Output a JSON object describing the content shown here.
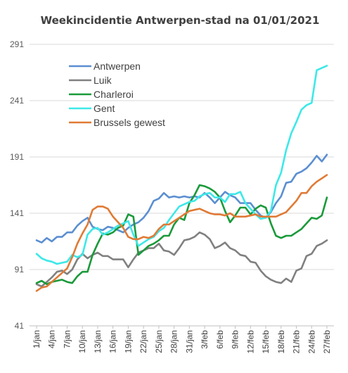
{
  "chart_data": {
    "type": "line",
    "title": "Weekincidentie  Antwerpen-stad na 01/01/2021",
    "xlabel": "",
    "ylabel": "",
    "ylim": [
      41,
      301
    ],
    "yticks": [
      41,
      91,
      141,
      191,
      241,
      291
    ],
    "grid": true,
    "legend_position": "top-left",
    "x": [
      "1/jan",
      "2/jan",
      "3/jan",
      "4/jan",
      "5/jan",
      "6/jan",
      "7/jan",
      "8/jan",
      "9/jan",
      "10/jan",
      "11/jan",
      "12/jan",
      "13/jan",
      "14/jan",
      "15/jan",
      "16/jan",
      "17/jan",
      "18/jan",
      "19/jan",
      "20/jan",
      "21/jan",
      "22/jan",
      "23/jan",
      "24/jan",
      "25/jan",
      "26/jan",
      "27/jan",
      "28/jan",
      "29/jan",
      "30/jan",
      "31/jan",
      "1/feb",
      "2/feb",
      "3/feb",
      "4/feb",
      "5/feb",
      "6/feb",
      "7/feb",
      "8/feb",
      "9/feb",
      "10/feb",
      "11/feb",
      "12/feb",
      "13/feb",
      "14/feb",
      "15/feb",
      "16/feb",
      "17/feb",
      "18/feb",
      "19/feb",
      "20/feb",
      "21/feb",
      "22/feb",
      "23/feb",
      "24/feb",
      "25/feb",
      "26/feb",
      "27/feb"
    ],
    "x_tick_labels": [
      "1/jan",
      "4/jan",
      "7/jan",
      "10/jan",
      "13/jan",
      "16/jan",
      "19/jan",
      "22/jan",
      "25/jan",
      "28/jan",
      "31/jan",
      "3/feb",
      "6/feb",
      "9/feb",
      "12/feb",
      "15/feb",
      "18/feb",
      "21/feb",
      "24/feb",
      "27/feb"
    ],
    "series": [
      {
        "name": "Antwerpen",
        "color": "#5b8fd1",
        "values": [
          117,
          115,
          119,
          116,
          120,
          120,
          124,
          124,
          130,
          134,
          137,
          129,
          127,
          126,
          129,
          128,
          126,
          124,
          128,
          131,
          133,
          137,
          143,
          152,
          154,
          159,
          155,
          156,
          155,
          156,
          155,
          156,
          155,
          159,
          155,
          150,
          155,
          160,
          157,
          155,
          150,
          150,
          150,
          144,
          139,
          137,
          142,
          150,
          156,
          168,
          169,
          176,
          178,
          181,
          186,
          192,
          187,
          193
        ]
      },
      {
        "name": "Luik",
        "color": "#808080",
        "values": [
          78,
          76,
          80,
          84,
          89,
          90,
          87,
          91,
          100,
          105,
          101,
          104,
          106,
          103,
          103,
          100,
          100,
          100,
          93,
          100,
          106,
          108,
          110,
          110,
          114,
          108,
          107,
          104,
          110,
          117,
          118,
          120,
          124,
          122,
          118,
          110,
          112,
          115,
          110,
          108,
          104,
          103,
          98,
          97,
          90,
          85,
          82,
          80,
          79,
          83,
          80,
          90,
          92,
          103,
          105,
          112,
          114,
          117
        ]
      },
      {
        "name": "Charleroi",
        "color": "#1a9a3a",
        "values": [
          79,
          81,
          78,
          80,
          81,
          82,
          80,
          79,
          85,
          89,
          89,
          104,
          114,
          123,
          122,
          124,
          128,
          130,
          140,
          138,
          104,
          108,
          112,
          114,
          117,
          121,
          121,
          131,
          137,
          135,
          150,
          157,
          166,
          165,
          163,
          160,
          155,
          143,
          133,
          139,
          146,
          146,
          140,
          145,
          148,
          146,
          132,
          121,
          119,
          121,
          121,
          124,
          127,
          132,
          137,
          136,
          139,
          155
        ]
      },
      {
        "name": "Gent",
        "color": "#3de8e8",
        "values": [
          105,
          101,
          99,
          98,
          96,
          97,
          98,
          104,
          102,
          104,
          122,
          127,
          128,
          122,
          124,
          127,
          130,
          132,
          134,
          122,
          112,
          115,
          118,
          120,
          125,
          128,
          135,
          141,
          147,
          149,
          151,
          152,
          156,
          158,
          159,
          155,
          155,
          151,
          158,
          158,
          160,
          150,
          145,
          140,
          136,
          137,
          143,
          166,
          177,
          197,
          212,
          222,
          233,
          237,
          239,
          268,
          270,
          272
        ]
      },
      {
        "name": "Brussels gewest",
        "color": "#e07a35",
        "values": [
          72,
          75,
          76,
          80,
          84,
          88,
          92,
          102,
          114,
          123,
          131,
          144,
          147,
          147,
          145,
          138,
          133,
          128,
          120,
          118,
          118,
          120,
          119,
          121,
          127,
          131,
          131,
          134,
          137,
          140,
          143,
          144,
          145,
          143,
          141,
          140,
          140,
          139,
          141,
          138,
          138,
          138,
          139,
          140,
          138,
          138,
          138,
          138,
          140,
          142,
          147,
          152,
          159,
          159,
          165,
          169,
          172,
          175
        ]
      }
    ]
  }
}
